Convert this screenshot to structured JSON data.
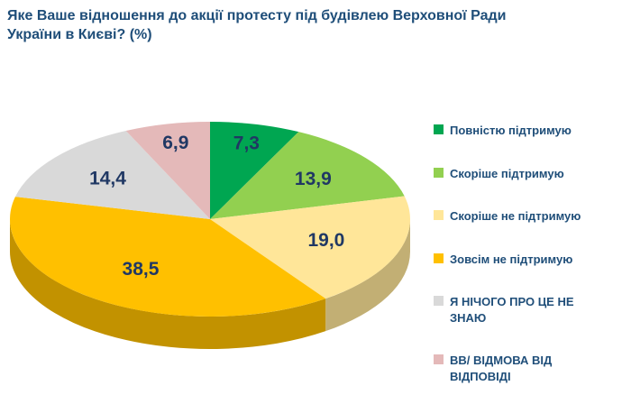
{
  "title": "Яке Ваше відношення до акції протесту під будівлею Верховної Ради України в Києві? (%)",
  "chart_data": {
    "type": "pie",
    "style": "3d-pie",
    "start_angle_deg": -90,
    "direction": "clockwise",
    "legend_position": "right",
    "labels": [
      "Повністю підтримую",
      "Скоріше підтримую",
      "Скоріше не підтримую",
      "Зовсім не підтримую",
      "Я НІЧОГО ПРО ЦЕ НЕ ЗНАЮ",
      "ВВ/ ВІДМОВА ВІД ВІДПОВІДІ"
    ],
    "values": [
      7.3,
      13.9,
      19.0,
      38.5,
      14.4,
      6.9
    ],
    "display_values": [
      "7,3",
      "13,9",
      "19,0",
      "38,5",
      "14,4",
      "6,9"
    ],
    "colors": [
      "#00A651",
      "#92D050",
      "#FFE699",
      "#FFC000",
      "#D9D9D9",
      "#E4B9B9"
    ]
  },
  "text_colors": {
    "title": "#1F4E79",
    "slice_label": "#203864",
    "legend": "#1F4E79"
  }
}
